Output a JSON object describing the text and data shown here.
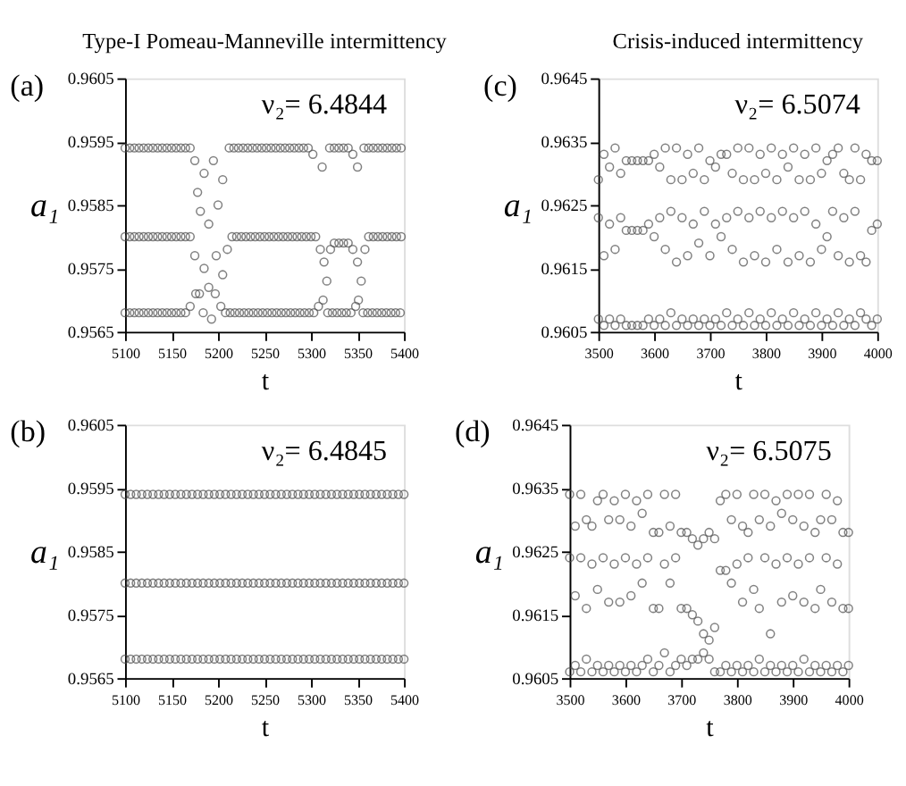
{
  "chart_data": [
    {
      "type": "scatter",
      "title": "Type-I Pomeau-Manneville intermittency",
      "xlabel": "t",
      "ylabel": "a₁",
      "annotations": [
        "(a)",
        "ν₂= 6.4844"
      ],
      "marker": "circle",
      "grid": false,
      "xlim": [
        5100,
        5400
      ],
      "xticks": [
        5100,
        5150,
        5200,
        5250,
        5300,
        5350,
        5400
      ],
      "ylim": [
        0.9565,
        0.9605
      ],
      "yticks": [
        0.9565,
        0.9575,
        0.9585,
        0.9595,
        0.9605
      ],
      "series": [
        {
          "color": "#4d4d4d",
          "x": [
            5100,
            5105,
            5110,
            5115,
            5120,
            5125,
            5130,
            5135,
            5140,
            5145,
            5150,
            5155,
            5160,
            5165,
            5170,
            5175,
            5178,
            5181,
            5185,
            5190,
            5195,
            5200,
            5205,
            5212,
            5217,
            5222,
            5227,
            5232,
            5237,
            5242,
            5247,
            5252,
            5257,
            5262,
            5267,
            5272,
            5277,
            5282,
            5287,
            5292,
            5297,
            5302,
            5312,
            5320,
            5325,
            5330,
            5335,
            5340,
            5345,
            5350,
            5357,
            5362,
            5367,
            5372,
            5377,
            5382,
            5387,
            5392,
            5397
          ],
          "values": [
            0.9594,
            0.9594,
            0.9594,
            0.9594,
            0.9594,
            0.9594,
            0.9594,
            0.9594,
            0.9594,
            0.9594,
            0.9594,
            0.9594,
            0.9594,
            0.9594,
            0.9594,
            0.9592,
            0.9587,
            0.9584,
            0.959,
            0.9582,
            0.9592,
            0.9585,
            0.9589,
            0.9594,
            0.9594,
            0.9594,
            0.9594,
            0.9594,
            0.9594,
            0.9594,
            0.9594,
            0.9594,
            0.9594,
            0.9594,
            0.9594,
            0.9594,
            0.9594,
            0.9594,
            0.9594,
            0.9594,
            0.9594,
            0.9593,
            0.9591,
            0.9594,
            0.9594,
            0.9594,
            0.9594,
            0.9594,
            0.9593,
            0.9591,
            0.9594,
            0.9594,
            0.9594,
            0.9594,
            0.9594,
            0.9594,
            0.9594,
            0.9594,
            0.9594
          ]
        },
        {
          "color": "#4d4d4d",
          "x": [
            5100,
            5105,
            5110,
            5115,
            5120,
            5125,
            5130,
            5135,
            5140,
            5145,
            5150,
            5155,
            5160,
            5165,
            5170,
            5175,
            5185,
            5198,
            5205,
            5210,
            5215,
            5220,
            5225,
            5230,
            5235,
            5240,
            5245,
            5250,
            5255,
            5260,
            5265,
            5270,
            5275,
            5280,
            5285,
            5290,
            5295,
            5300,
            5305,
            5310,
            5314,
            5317,
            5321,
            5325,
            5330,
            5335,
            5340,
            5345,
            5350,
            5354,
            5358,
            5362,
            5367,
            5372,
            5377,
            5382,
            5387,
            5392,
            5397
          ],
          "values": [
            0.958,
            0.958,
            0.958,
            0.958,
            0.958,
            0.958,
            0.958,
            0.958,
            0.958,
            0.958,
            0.958,
            0.958,
            0.958,
            0.958,
            0.958,
            0.9577,
            0.9575,
            0.9577,
            0.9574,
            0.9578,
            0.958,
            0.958,
            0.958,
            0.958,
            0.958,
            0.958,
            0.958,
            0.958,
            0.958,
            0.958,
            0.958,
            0.958,
            0.958,
            0.958,
            0.958,
            0.958,
            0.958,
            0.958,
            0.958,
            0.9578,
            0.9576,
            0.9573,
            0.9578,
            0.9579,
            0.9579,
            0.9579,
            0.9579,
            0.9578,
            0.9576,
            0.9573,
            0.9578,
            0.958,
            0.958,
            0.958,
            0.958,
            0.958,
            0.958,
            0.958,
            0.958
          ]
        },
        {
          "color": "#4d4d4d",
          "x": [
            5100,
            5105,
            5110,
            5115,
            5120,
            5125,
            5130,
            5135,
            5140,
            5145,
            5150,
            5155,
            5160,
            5165,
            5170,
            5176,
            5180,
            5184,
            5190,
            5193,
            5197,
            5203,
            5208,
            5213,
            5218,
            5223,
            5228,
            5233,
            5238,
            5243,
            5248,
            5253,
            5258,
            5263,
            5268,
            5273,
            5278,
            5283,
            5288,
            5293,
            5298,
            5303,
            5308,
            5313,
            5318,
            5323,
            5328,
            5333,
            5338,
            5343,
            5348,
            5351,
            5356,
            5361,
            5366,
            5371,
            5376,
            5381,
            5386,
            5391,
            5396
          ],
          "values": [
            0.9568,
            0.9568,
            0.9568,
            0.9568,
            0.9568,
            0.9568,
            0.9568,
            0.9568,
            0.9568,
            0.9568,
            0.9568,
            0.9568,
            0.9568,
            0.9568,
            0.9569,
            0.9571,
            0.9571,
            0.9568,
            0.9572,
            0.9567,
            0.9571,
            0.9569,
            0.9568,
            0.9568,
            0.9568,
            0.9568,
            0.9568,
            0.9568,
            0.9568,
            0.9568,
            0.9568,
            0.9568,
            0.9568,
            0.9568,
            0.9568,
            0.9568,
            0.9568,
            0.9568,
            0.9568,
            0.9568,
            0.9568,
            0.9568,
            0.9569,
            0.957,
            0.9568,
            0.9568,
            0.9568,
            0.9568,
            0.9568,
            0.9568,
            0.9569,
            0.957,
            0.9568,
            0.9568,
            0.9568,
            0.9568,
            0.9568,
            0.9568,
            0.9568,
            0.9568,
            0.9568
          ]
        }
      ]
    },
    {
      "type": "scatter",
      "title": "Crisis-induced intermittency",
      "xlabel": "t",
      "ylabel": "a₁",
      "annotations": [
        "(c)",
        "ν₂= 6.5074"
      ],
      "marker": "circle",
      "grid": false,
      "xlim": [
        3500,
        4000
      ],
      "xticks": [
        3500,
        3600,
        3700,
        3800,
        3900,
        4000
      ],
      "ylim": [
        0.9605,
        0.9645
      ],
      "yticks": [
        0.9605,
        0.9615,
        0.9625,
        0.9635,
        0.9645
      ],
      "x": [
        3500,
        3510,
        3520,
        3530,
        3540,
        3550,
        3560,
        3570,
        3580,
        3590,
        3600,
        3610,
        3620,
        3630,
        3640,
        3650,
        3660,
        3670,
        3680,
        3690,
        3700,
        3710,
        3720,
        3730,
        3740,
        3750,
        3760,
        3770,
        3780,
        3790,
        3800,
        3810,
        3820,
        3830,
        3840,
        3850,
        3860,
        3870,
        3880,
        3890,
        3900,
        3910,
        3920,
        3930,
        3940,
        3950,
        3960,
        3970,
        3980,
        3990,
        4000
      ],
      "series": [
        {
          "color": "#4d4d4d",
          "values": [
            0.9629,
            0.9633,
            0.9631,
            0.9634,
            0.963,
            0.9632,
            0.9632,
            0.9632,
            0.9632,
            0.9632,
            0.9633,
            0.9631,
            0.9634,
            0.9629,
            0.9634,
            0.9629,
            0.9633,
            0.963,
            0.9634,
            0.9629,
            0.9632,
            0.9631,
            0.9633,
            0.9633,
            0.963,
            0.9634,
            0.9629,
            0.9634,
            0.9629,
            0.9633,
            0.963,
            0.9634,
            0.9629,
            0.9633,
            0.9631,
            0.9634,
            0.9629,
            0.9633,
            0.9629,
            0.9634,
            0.963,
            0.9632,
            0.9633,
            0.9634,
            0.963,
            0.9629,
            0.9634,
            0.9629,
            0.9633,
            0.9632,
            0.9632
          ]
        },
        {
          "color": "#4d4d4d",
          "values": [
            0.9623,
            0.9617,
            0.9622,
            0.9618,
            0.9623,
            0.9621,
            0.9621,
            0.9621,
            0.9621,
            0.9622,
            0.962,
            0.9623,
            0.9618,
            0.9624,
            0.9616,
            0.9623,
            0.9617,
            0.9622,
            0.9619,
            0.9624,
            0.9617,
            0.9622,
            0.962,
            0.9623,
            0.9618,
            0.9624,
            0.9616,
            0.9623,
            0.9617,
            0.9624,
            0.9616,
            0.9623,
            0.9618,
            0.9624,
            0.9616,
            0.9623,
            0.9617,
            0.9624,
            0.9616,
            0.9622,
            0.9618,
            0.962,
            0.9624,
            0.9617,
            0.9623,
            0.9616,
            0.9624,
            0.9617,
            0.9616,
            0.9621,
            0.9622
          ]
        },
        {
          "color": "#4d4d4d",
          "values": [
            0.9607,
            0.9606,
            0.9607,
            0.9606,
            0.9607,
            0.9606,
            0.9606,
            0.9606,
            0.9606,
            0.9607,
            0.9606,
            0.9607,
            0.9606,
            0.9608,
            0.9606,
            0.9607,
            0.9606,
            0.9607,
            0.9606,
            0.9607,
            0.9606,
            0.9607,
            0.9606,
            0.9608,
            0.9606,
            0.9607,
            0.9606,
            0.9608,
            0.9606,
            0.9607,
            0.9606,
            0.9608,
            0.9606,
            0.9607,
            0.9606,
            0.9608,
            0.9606,
            0.9607,
            0.9606,
            0.9608,
            0.9606,
            0.9607,
            0.9606,
            0.9608,
            0.9606,
            0.9607,
            0.9606,
            0.9608,
            0.9607,
            0.9606,
            0.9607
          ]
        }
      ]
    },
    {
      "type": "scatter",
      "xlabel": "t",
      "ylabel": "a₁",
      "annotations": [
        "(b)",
        "ν₂= 6.4845"
      ],
      "marker": "circle",
      "grid": false,
      "xlim": [
        5100,
        5400
      ],
      "xticks": [
        5100,
        5150,
        5200,
        5250,
        5300,
        5350,
        5400
      ],
      "ylim": [
        0.9565,
        0.9605
      ],
      "yticks": [
        0.9565,
        0.9575,
        0.9585,
        0.9595,
        0.9605
      ],
      "x": [
        5100,
        5106,
        5112,
        5118,
        5124,
        5130,
        5136,
        5142,
        5148,
        5154,
        5160,
        5166,
        5172,
        5178,
        5184,
        5190,
        5196,
        5202,
        5208,
        5214,
        5220,
        5226,
        5232,
        5238,
        5244,
        5250,
        5256,
        5262,
        5268,
        5274,
        5280,
        5286,
        5292,
        5298,
        5304,
        5310,
        5316,
        5322,
        5328,
        5334,
        5340,
        5346,
        5352,
        5358,
        5364,
        5370,
        5376,
        5382,
        5388,
        5394,
        5400
      ],
      "series": [
        {
          "color": "#4d4d4d",
          "values": [
            0.9594,
            0.9594,
            0.9594,
            0.9594,
            0.9594,
            0.9594,
            0.9594,
            0.9594,
            0.9594,
            0.9594,
            0.9594,
            0.9594,
            0.9594,
            0.9594,
            0.9594,
            0.9594,
            0.9594,
            0.9594,
            0.9594,
            0.9594,
            0.9594,
            0.9594,
            0.9594,
            0.9594,
            0.9594,
            0.9594,
            0.9594,
            0.9594,
            0.9594,
            0.9594,
            0.9594,
            0.9594,
            0.9594,
            0.9594,
            0.9594,
            0.9594,
            0.9594,
            0.9594,
            0.9594,
            0.9594,
            0.9594,
            0.9594,
            0.9594,
            0.9594,
            0.9594,
            0.9594,
            0.9594,
            0.9594,
            0.9594,
            0.9594,
            0.9594
          ]
        },
        {
          "color": "#4d4d4d",
          "values": [
            0.958,
            0.958,
            0.958,
            0.958,
            0.958,
            0.958,
            0.958,
            0.958,
            0.958,
            0.958,
            0.958,
            0.958,
            0.958,
            0.958,
            0.958,
            0.958,
            0.958,
            0.958,
            0.958,
            0.958,
            0.958,
            0.958,
            0.958,
            0.958,
            0.958,
            0.958,
            0.958,
            0.958,
            0.958,
            0.958,
            0.958,
            0.958,
            0.958,
            0.958,
            0.958,
            0.958,
            0.958,
            0.958,
            0.958,
            0.958,
            0.958,
            0.958,
            0.958,
            0.958,
            0.958,
            0.958,
            0.958,
            0.958,
            0.958,
            0.958,
            0.958
          ]
        },
        {
          "color": "#4d4d4d",
          "values": [
            0.9568,
            0.9568,
            0.9568,
            0.9568,
            0.9568,
            0.9568,
            0.9568,
            0.9568,
            0.9568,
            0.9568,
            0.9568,
            0.9568,
            0.9568,
            0.9568,
            0.9568,
            0.9568,
            0.9568,
            0.9568,
            0.9568,
            0.9568,
            0.9568,
            0.9568,
            0.9568,
            0.9568,
            0.9568,
            0.9568,
            0.9568,
            0.9568,
            0.9568,
            0.9568,
            0.9568,
            0.9568,
            0.9568,
            0.9568,
            0.9568,
            0.9568,
            0.9568,
            0.9568,
            0.9568,
            0.9568,
            0.9568,
            0.9568,
            0.9568,
            0.9568,
            0.9568,
            0.9568,
            0.9568,
            0.9568,
            0.9568,
            0.9568,
            0.9568
          ]
        }
      ]
    },
    {
      "type": "scatter",
      "xlabel": "t",
      "ylabel": "a₁",
      "annotations": [
        "(d)",
        "ν₂= 6.5075"
      ],
      "marker": "circle",
      "grid": false,
      "xlim": [
        3500,
        4000
      ],
      "xticks": [
        3500,
        3600,
        3700,
        3800,
        3900,
        4000
      ],
      "ylim": [
        0.9605,
        0.9645
      ],
      "yticks": [
        0.9605,
        0.9615,
        0.9625,
        0.9635,
        0.9645
      ],
      "x": [
        3500,
        3510,
        3520,
        3530,
        3540,
        3550,
        3560,
        3570,
        3580,
        3590,
        3600,
        3610,
        3620,
        3630,
        3640,
        3650,
        3660,
        3670,
        3680,
        3690,
        3700,
        3710,
        3720,
        3730,
        3740,
        3750,
        3760,
        3770,
        3780,
        3790,
        3800,
        3810,
        3820,
        3830,
        3840,
        3850,
        3860,
        3870,
        3880,
        3890,
        3900,
        3910,
        3920,
        3930,
        3940,
        3950,
        3960,
        3970,
        3980,
        3990,
        4000
      ],
      "series": [
        {
          "color": "#4d4d4d",
          "values": [
            0.9634,
            0.9629,
            0.9634,
            0.963,
            0.9629,
            0.9633,
            0.9634,
            0.963,
            0.9633,
            0.963,
            0.9634,
            0.9629,
            0.9633,
            0.9631,
            0.9634,
            0.9628,
            0.9628,
            0.9634,
            0.9629,
            0.9634,
            0.9628,
            0.9628,
            0.9627,
            0.9626,
            0.9627,
            0.9628,
            0.9627,
            0.9633,
            0.9634,
            0.963,
            0.9634,
            0.9629,
            0.9628,
            0.9634,
            0.963,
            0.9634,
            0.9629,
            0.9633,
            0.9631,
            0.9634,
            0.963,
            0.9634,
            0.9629,
            0.9634,
            0.9628,
            0.963,
            0.9634,
            0.963,
            0.9633,
            0.9628,
            0.9628
          ]
        },
        {
          "color": "#4d4d4d",
          "values": [
            0.9624,
            0.9618,
            0.9624,
            0.9616,
            0.9623,
            0.9619,
            0.9624,
            0.9617,
            0.9623,
            0.9617,
            0.9624,
            0.9618,
            0.9623,
            0.962,
            0.9624,
            0.9616,
            0.9616,
            0.9623,
            0.962,
            0.9624,
            0.9616,
            0.9616,
            0.9615,
            0.9614,
            0.9612,
            0.9611,
            0.9613,
            0.9622,
            0.9622,
            0.962,
            0.9623,
            0.9617,
            0.9624,
            0.9619,
            0.9616,
            0.9624,
            0.9612,
            0.9623,
            0.9617,
            0.9624,
            0.9618,
            0.9623,
            0.9617,
            0.9624,
            0.9616,
            0.9619,
            0.9624,
            0.9617,
            0.9623,
            0.9616,
            0.9616
          ]
        },
        {
          "color": "#4d4d4d",
          "values": [
            0.9606,
            0.9607,
            0.9606,
            0.9608,
            0.9606,
            0.9607,
            0.9606,
            0.9607,
            0.9606,
            0.9607,
            0.9606,
            0.9607,
            0.9606,
            0.9607,
            0.9608,
            0.9606,
            0.9607,
            0.9609,
            0.9606,
            0.9607,
            0.9608,
            0.9607,
            0.9608,
            0.9608,
            0.9609,
            0.9608,
            0.9606,
            0.9606,
            0.9607,
            0.9606,
            0.9607,
            0.9606,
            0.9607,
            0.9606,
            0.9608,
            0.9606,
            0.9607,
            0.9606,
            0.9607,
            0.9606,
            0.9607,
            0.9606,
            0.9608,
            0.9606,
            0.9607,
            0.9606,
            0.9607,
            0.9606,
            0.9607,
            0.9606,
            0.9607
          ]
        }
      ]
    }
  ]
}
